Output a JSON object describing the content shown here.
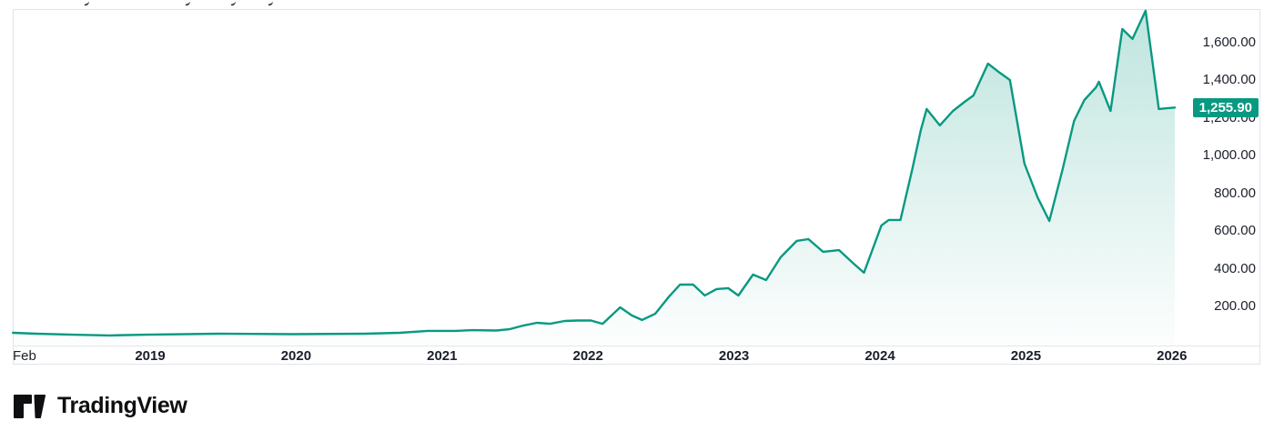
{
  "chart_data": {
    "type": "area",
    "title": "",
    "xlabel": "",
    "ylabel": "",
    "grid": false,
    "legend_position": "none",
    "x_tick_labels": [
      "Feb",
      "2019",
      "2020",
      "2021",
      "2022",
      "2023",
      "2024",
      "2025",
      "2026"
    ],
    "x_tick_times": [
      2018.09,
      2019,
      2020,
      2021,
      2022,
      2023,
      2024,
      2025,
      2026
    ],
    "y_tick_labels": [
      "1,600.00",
      "1,400.00",
      "1,200.00",
      "1,000.00",
      "800.00",
      "600.00",
      "400.00",
      "200.00"
    ],
    "y_tick_values": [
      1600,
      1400,
      1200,
      1000,
      800,
      600,
      400,
      200
    ],
    "xlim": [
      2018.06,
      2026.6
    ],
    "ylim": [
      0,
      1780
    ],
    "last_value": 1255.9,
    "last_value_label": "1,255.90",
    "line_color": "#089981",
    "fill_color_top": "rgba(8,153,129,0.26)",
    "fill_color_bottom": "rgba(8,153,129,0.01)",
    "points": [
      [
        2018.06,
        60
      ],
      [
        2018.22,
        55
      ],
      [
        2018.47,
        50
      ],
      [
        2018.72,
        46
      ],
      [
        2018.97,
        50
      ],
      [
        2019.47,
        55
      ],
      [
        2019.97,
        53
      ],
      [
        2020.47,
        55
      ],
      [
        2020.71,
        60
      ],
      [
        2020.9,
        70
      ],
      [
        2021.09,
        70
      ],
      [
        2021.21,
        74
      ],
      [
        2021.37,
        72
      ],
      [
        2021.46,
        79
      ],
      [
        2021.56,
        99
      ],
      [
        2021.65,
        113
      ],
      [
        2021.74,
        108
      ],
      [
        2021.84,
        123
      ],
      [
        2021.93,
        125
      ],
      [
        2022.02,
        125
      ],
      [
        2022.1,
        108
      ],
      [
        2022.22,
        195
      ],
      [
        2022.3,
        152
      ],
      [
        2022.37,
        128
      ],
      [
        2022.46,
        161
      ],
      [
        2022.55,
        248
      ],
      [
        2022.63,
        316
      ],
      [
        2022.72,
        316
      ],
      [
        2022.8,
        258
      ],
      [
        2022.88,
        292
      ],
      [
        2022.96,
        297
      ],
      [
        2023.03,
        258
      ],
      [
        2023.13,
        369
      ],
      [
        2023.22,
        340
      ],
      [
        2023.32,
        461
      ],
      [
        2023.43,
        548
      ],
      [
        2023.51,
        557
      ],
      [
        2023.61,
        490
      ],
      [
        2023.72,
        499
      ],
      [
        2023.82,
        427
      ],
      [
        2023.89,
        379
      ],
      [
        2024.01,
        630
      ],
      [
        2024.06,
        659
      ],
      [
        2024.14,
        659
      ],
      [
        2024.22,
        924
      ],
      [
        2024.28,
        1136
      ],
      [
        2024.32,
        1248
      ],
      [
        2024.41,
        1161
      ],
      [
        2024.5,
        1238
      ],
      [
        2024.58,
        1286
      ],
      [
        2024.64,
        1320
      ],
      [
        2024.74,
        1489
      ],
      [
        2024.82,
        1441
      ],
      [
        2024.89,
        1402
      ],
      [
        2024.99,
        958
      ],
      [
        2025.08,
        779
      ],
      [
        2025.16,
        654
      ],
      [
        2025.25,
        924
      ],
      [
        2025.33,
        1185
      ],
      [
        2025.4,
        1296
      ],
      [
        2025.48,
        1363
      ],
      [
        2025.5,
        1393
      ],
      [
        2025.58,
        1238
      ],
      [
        2025.66,
        1673
      ],
      [
        2025.73,
        1620
      ],
      [
        2025.82,
        1770
      ],
      [
        2025.91,
        1248
      ],
      [
        2025.97,
        1253
      ],
      [
        2026.02,
        1255.9
      ]
    ]
  },
  "badge": {
    "label": "1,255.90",
    "color": "#089981"
  },
  "branding": {
    "name": "TradingView"
  }
}
